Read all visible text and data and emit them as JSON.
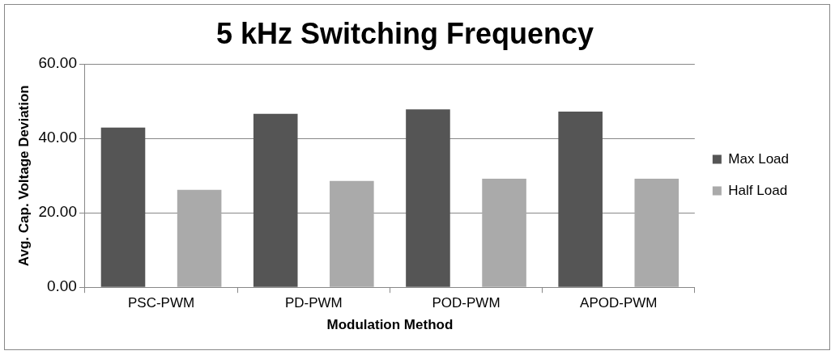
{
  "chart_data": {
    "type": "bar",
    "title": "5 kHz Switching Frequency",
    "xlabel": "Modulation Method",
    "ylabel": "Avg. Cap. Voltage Deviation",
    "categories": [
      "PSC-PWM",
      "PD-PWM",
      "POD-PWM",
      "APOD-PWM"
    ],
    "series": [
      {
        "name": "Max Load",
        "color": "#555555",
        "values": [
          42.9,
          46.6,
          47.8,
          47.2
        ]
      },
      {
        "name": "Half Load",
        "color": "#aaaaaa",
        "values": [
          26.2,
          28.6,
          29.2,
          29.2
        ]
      }
    ],
    "ylim": [
      0,
      60
    ],
    "yticks": [
      {
        "value": 0,
        "label": "0.00"
      },
      {
        "value": 20,
        "label": "20.00"
      },
      {
        "value": 40,
        "label": "40.00"
      },
      {
        "value": 60,
        "label": "60.00"
      }
    ],
    "grid": "y",
    "legend": "right"
  }
}
